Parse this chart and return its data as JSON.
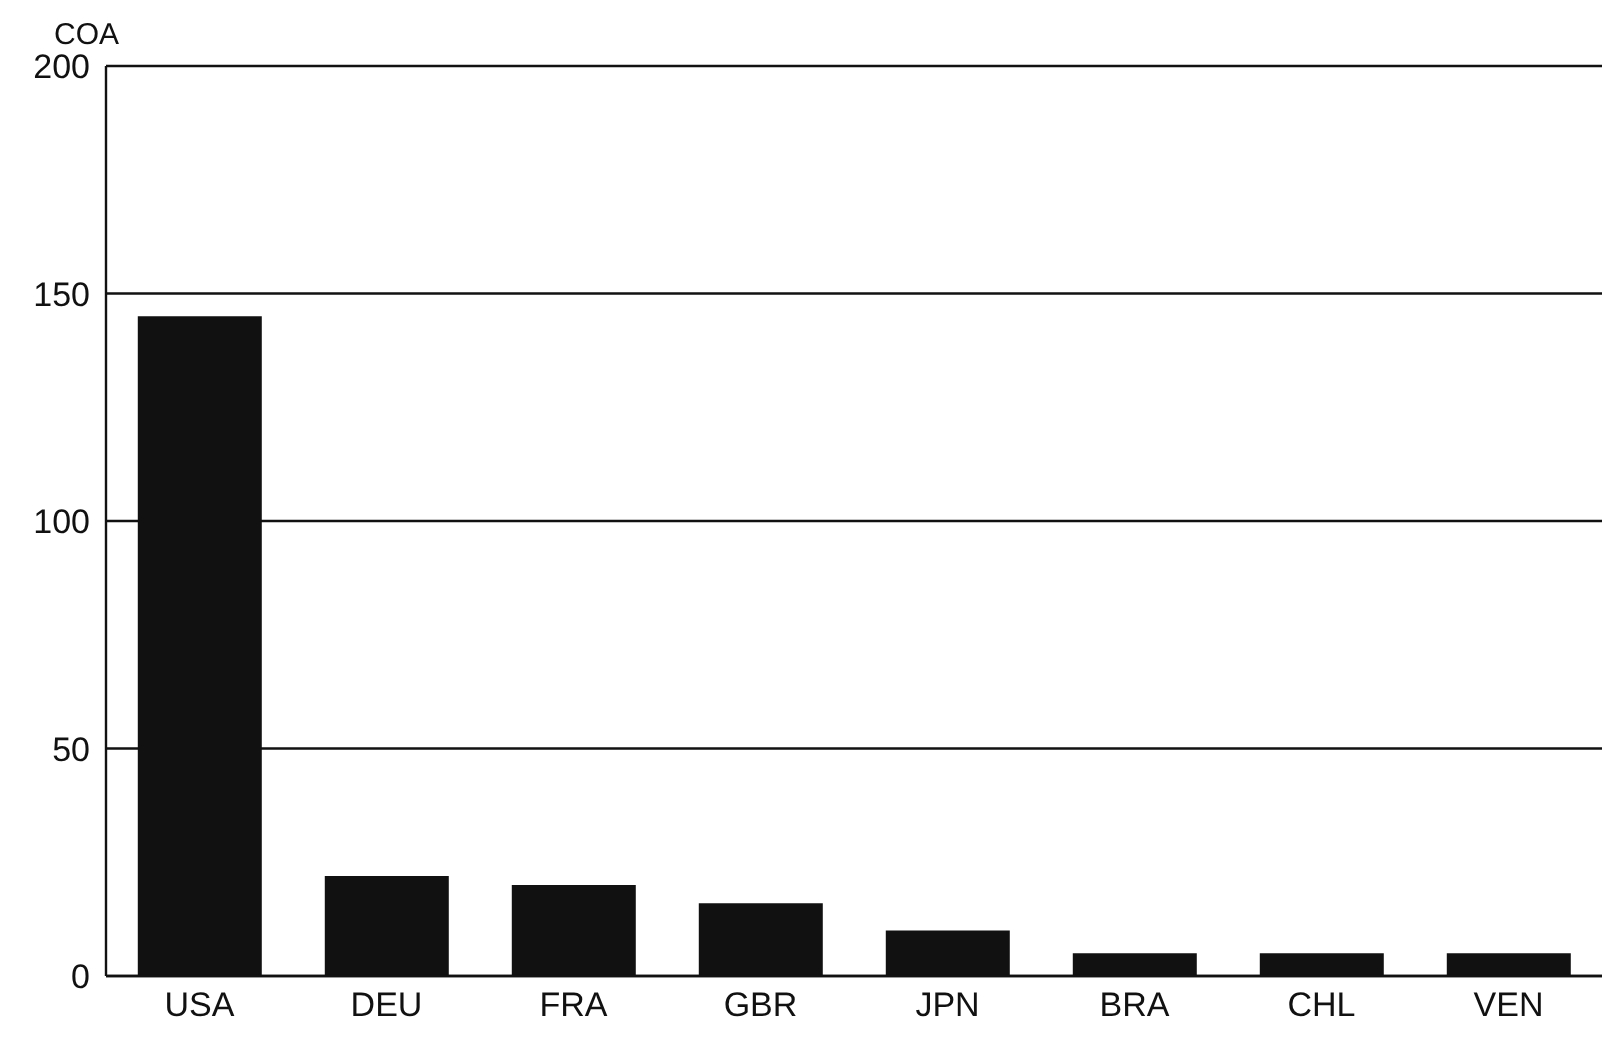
{
  "chart_data": {
    "type": "bar",
    "ylabel": "COA",
    "categories": [
      "USA",
      "DEU",
      "FRA",
      "GBR",
      "JPN",
      "BRA",
      "CHL",
      "VEN"
    ],
    "values": [
      145,
      22,
      20,
      16,
      10,
      5,
      5,
      5
    ],
    "color": "#111111",
    "ylim": [
      0,
      200
    ],
    "yticks": [
      0,
      50,
      100,
      150,
      200
    ],
    "grid": "y"
  }
}
